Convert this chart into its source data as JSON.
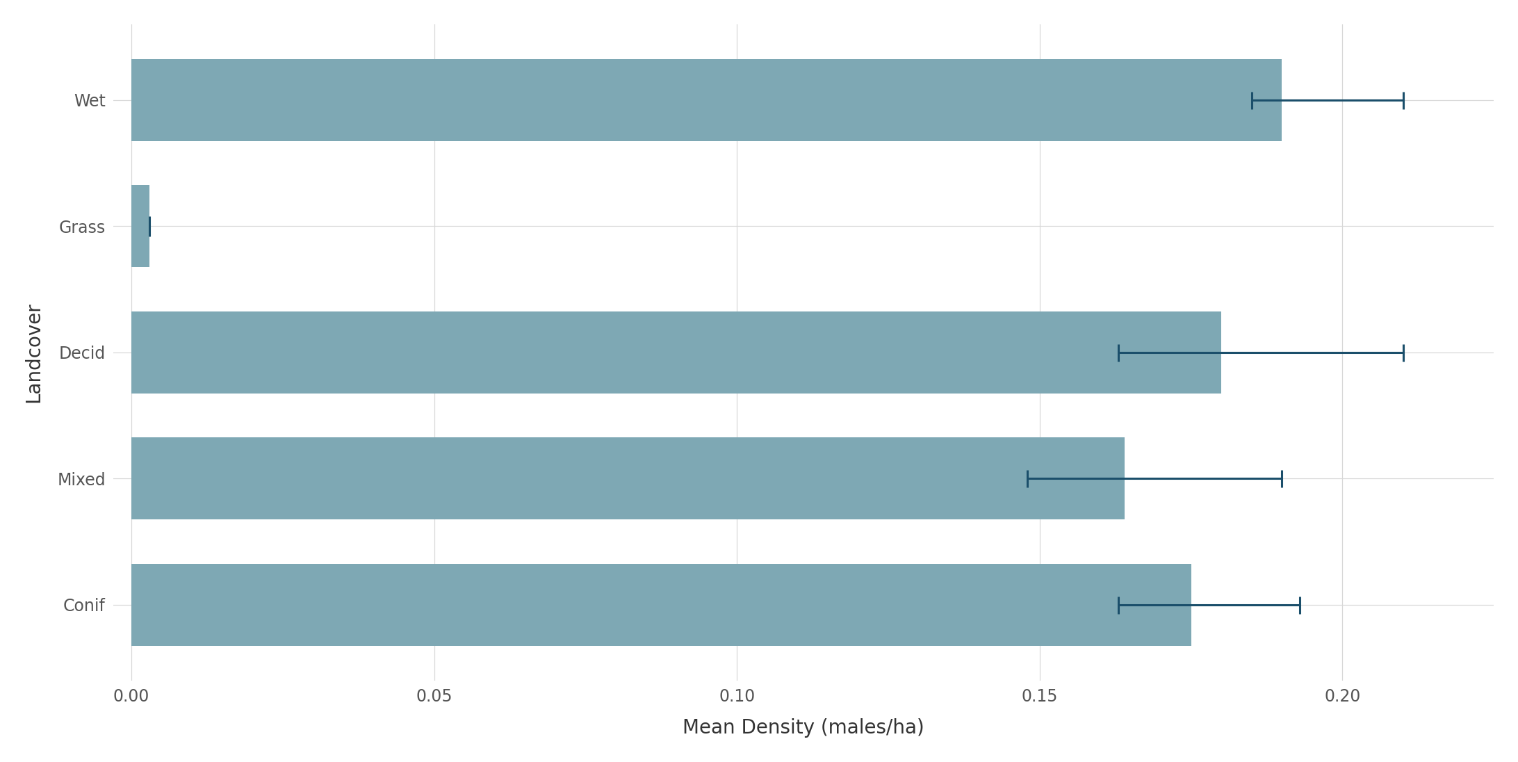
{
  "categories": [
    "Conif",
    "Mixed",
    "Decid",
    "Grass",
    "Wet"
  ],
  "values": [
    0.175,
    0.164,
    0.18,
    0.003,
    0.19
  ],
  "err_centers": [
    0.163,
    0.148,
    0.163,
    0.003,
    0.185
  ],
  "err_lo": [
    0.163,
    0.148,
    0.163,
    0.003,
    0.185
  ],
  "err_hi": [
    0.193,
    0.19,
    0.21,
    0.003,
    0.21
  ],
  "bar_color": "#7EA8B4",
  "errorbar_color": "#1B4F6B",
  "xlabel": "Mean Density (males/ha)",
  "ylabel": "Landcover",
  "xlim": [
    -0.003,
    0.225
  ],
  "xticks": [
    0.0,
    0.05,
    0.1,
    0.15,
    0.2
  ],
  "background_color": "#FFFFFF",
  "grid_color": "#D8D8D8",
  "bar_height": 0.65,
  "axis_label_fontsize": 20,
  "tick_fontsize": 17
}
